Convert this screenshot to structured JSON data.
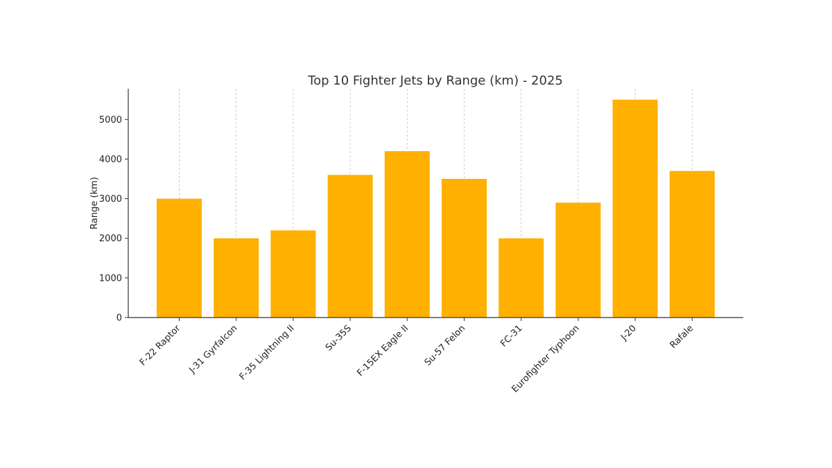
{
  "chart_data": {
    "type": "bar",
    "title": "Top 10 Fighter Jets by Range (km) - 2025",
    "xlabel": "",
    "ylabel": "Range (km)",
    "categories": [
      "F-22 Raptor",
      "J-31 Gyrfalcon",
      "F-35 Lightning II",
      "Su-35S",
      "F-15EX Eagle II",
      "Su-57 Felon",
      "FC-31",
      "Eurofighter Typhoon",
      "J-20",
      "Rafale"
    ],
    "values": [
      3000,
      2000,
      2200,
      3600,
      4200,
      3500,
      2000,
      2900,
      5500,
      3700
    ],
    "ylim": [
      0,
      5775
    ],
    "yticks": [
      0,
      1000,
      2000,
      3000,
      4000,
      5000
    ],
    "grid": "x-dashed",
    "legend": "none",
    "bar_color": "#FFB000"
  }
}
